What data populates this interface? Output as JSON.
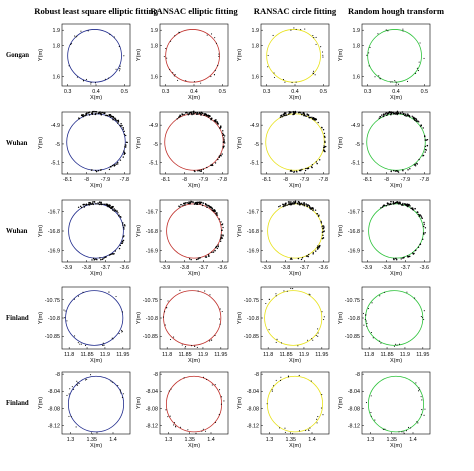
{
  "chart_data": {
    "type": "scatter",
    "methods": [
      {
        "name": "Robust least square elliptic fitting",
        "color": "#1f2a8c"
      },
      {
        "name": "RANSAC elliptic fitting",
        "color": "#c0302b"
      },
      {
        "name": "RANSAC circle fitting",
        "color": "#e8e21a"
      },
      {
        "name": "Random hough transform",
        "color": "#2cc23a"
      }
    ],
    "xlabel": "X(m)",
    "ylabel": "Y(m)",
    "rows": [
      {
        "label": "Gongan",
        "center": [
          0.395,
          1.735
        ],
        "radius": [
          0.095,
          0.17
        ],
        "x_ticks": [
          0.3,
          0.4,
          0.5
        ],
        "y_ticks": [
          1.6,
          1.8,
          1.9
        ],
        "xlim": [
          0.28,
          0.52
        ],
        "ylim": [
          1.54,
          1.94
        ]
      },
      {
        "label": "Wuhan",
        "center": [
          -7.95,
          -4.99
        ],
        "radius": [
          0.155,
          0.15
        ],
        "x_ticks": [
          -8.1,
          -8,
          -7.9,
          -7.8
        ],
        "y_ticks": [
          -4.9,
          -5,
          -5.1
        ],
        "xlim": [
          -8.13,
          -7.77
        ],
        "ylim": [
          -5.16,
          -4.83
        ]
      },
      {
        "label": "Wuhan",
        "center": [
          -3.75,
          -16.8
        ],
        "radius": [
          0.145,
          0.14
        ],
        "x_ticks": [
          -3.9,
          -3.8,
          -3.7,
          -3.6
        ],
        "y_ticks": [
          -16.7,
          -16.8,
          -16.9
        ],
        "xlim": [
          -3.93,
          -3.57
        ],
        "ylim": [
          -16.96,
          -16.64
        ]
      },
      {
        "label": "Finland",
        "center": [
          11.87,
          -10.8
        ],
        "radius": [
          0.08,
          0.075
        ],
        "x_ticks": [
          11.8,
          11.85,
          11.9,
          11.95
        ],
        "y_ticks": [
          -10.75,
          -10.8,
          -10.85
        ],
        "xlim": [
          11.78,
          11.97
        ],
        "ylim": [
          -10.885,
          -10.715
        ]
      },
      {
        "label": "Finland",
        "center": [
          1.36,
          -8.07
        ],
        "radius": [
          0.065,
          0.065
        ],
        "x_ticks": [
          1.3,
          1.35,
          1.4
        ],
        "y_ticks": [
          -8,
          -8.04,
          -8.08,
          -8.12
        ],
        "xlim": [
          1.28,
          1.44
        ],
        "ylim": [
          -8.14,
          -7.995
        ]
      }
    ]
  }
}
